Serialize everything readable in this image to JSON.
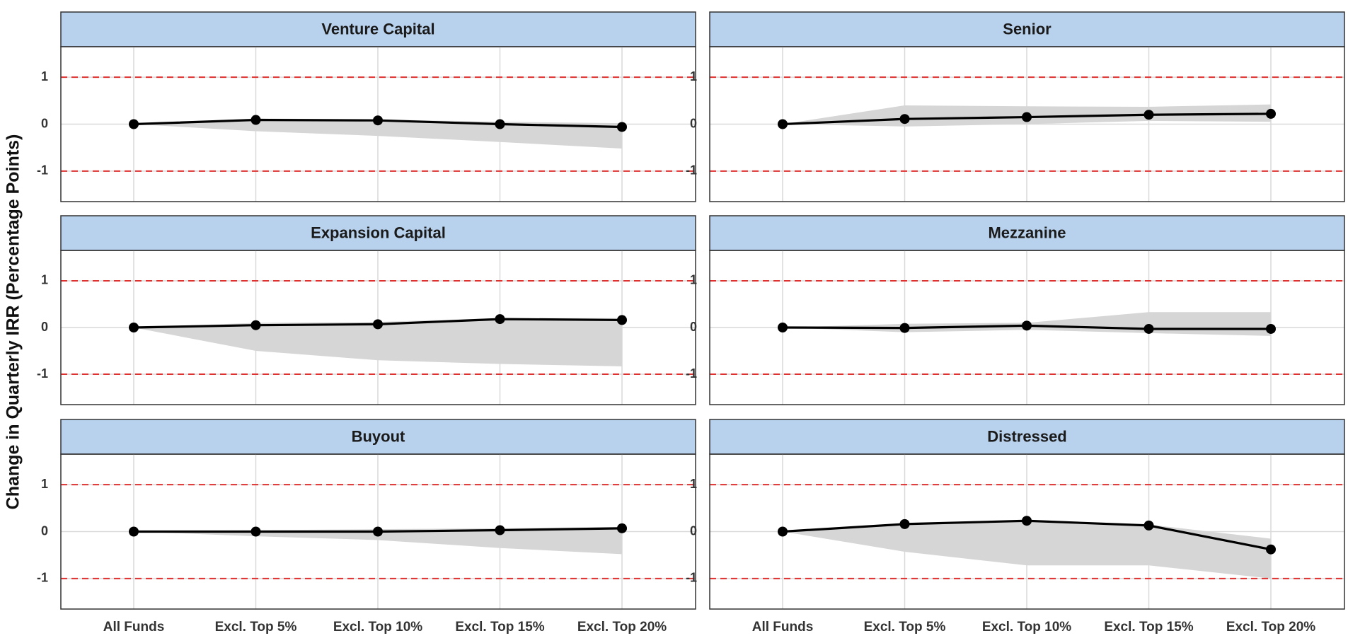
{
  "chart_data": {
    "type": "line",
    "ylabel": "Change in Quarterly IRR (Percentage Points)",
    "xlabel": "",
    "categories": [
      "All Funds",
      "Excl. Top 5%",
      "Excl. Top 10%",
      "Excl. Top 15%",
      "Excl. Top 20%"
    ],
    "ylim": [
      -1.65,
      1.65
    ],
    "yticks": [
      -1,
      0,
      1
    ],
    "ytick_labels": [
      "-1",
      "0",
      "1"
    ],
    "reference_lines": [
      1,
      -1
    ],
    "grid": true,
    "panels": [
      {
        "title": "Venture Capital",
        "values": [
          0,
          0.09,
          0.08,
          0.0,
          -0.06
        ],
        "band_lower": [
          0,
          -0.15,
          -0.25,
          -0.38,
          -0.52
        ],
        "band_upper": [
          0,
          0.12,
          0.1,
          0.05,
          0.02
        ]
      },
      {
        "title": "Senior",
        "values": [
          0,
          0.11,
          0.15,
          0.2,
          0.22
        ],
        "band_lower": [
          0,
          -0.05,
          0.0,
          0.07,
          0.05
        ],
        "band_upper": [
          0,
          0.4,
          0.38,
          0.37,
          0.42
        ]
      },
      {
        "title": "Expansion Capital",
        "values": [
          0,
          0.05,
          0.07,
          0.18,
          0.16
        ],
        "band_lower": [
          0,
          -0.5,
          -0.7,
          -0.78,
          -0.83
        ],
        "band_upper": [
          0,
          0.1,
          0.12,
          0.2,
          0.2
        ]
      },
      {
        "title": "Mezzanine",
        "values": [
          0,
          -0.01,
          0.04,
          -0.03,
          -0.03
        ],
        "band_lower": [
          0,
          -0.1,
          -0.05,
          -0.12,
          -0.18
        ],
        "band_upper": [
          0,
          0.08,
          0.1,
          0.33,
          0.33
        ]
      },
      {
        "title": "Buyout",
        "values": [
          0,
          0.0,
          0.0,
          0.03,
          0.07
        ],
        "band_lower": [
          0,
          -0.1,
          -0.18,
          -0.35,
          -0.48
        ],
        "band_upper": [
          0,
          0.03,
          0.05,
          0.07,
          0.1
        ]
      },
      {
        "title": "Distressed",
        "values": [
          0,
          0.16,
          0.23,
          0.13,
          -0.38
        ],
        "band_lower": [
          0,
          -0.43,
          -0.72,
          -0.72,
          -1.0
        ],
        "band_upper": [
          0,
          0.18,
          0.25,
          0.15,
          -0.15
        ]
      }
    ],
    "colors": {
      "line": "#000000",
      "band": "#d6d6d6",
      "strip": "#b8d1ec",
      "reference_line": "#e03131",
      "grid": "#d9d9d9",
      "border": "#333333"
    }
  }
}
